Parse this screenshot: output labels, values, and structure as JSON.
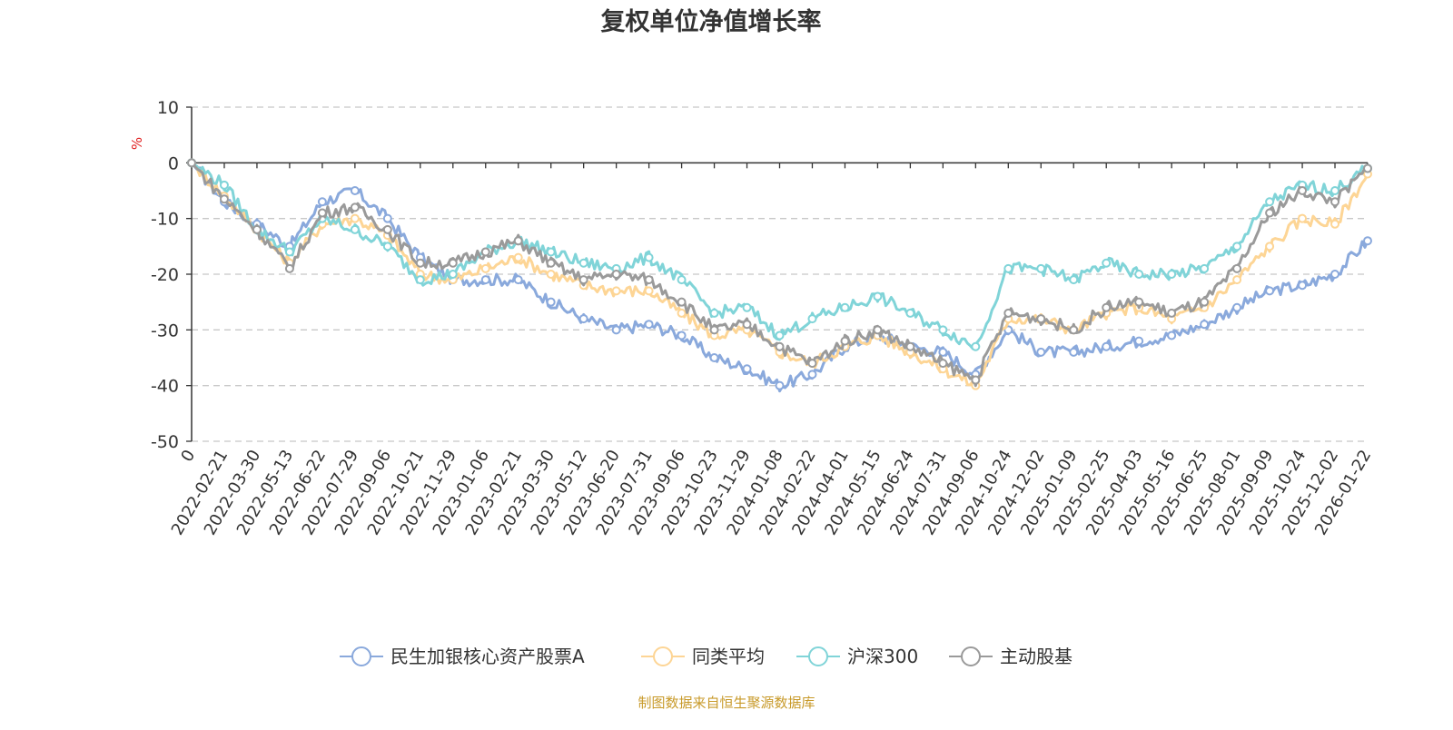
{
  "chart_data": {
    "type": "line",
    "title": "复权单位净值增长率",
    "ylabel": "%",
    "ylim": [
      -50,
      10
    ],
    "yticks": [
      10,
      0,
      -10,
      -20,
      -30,
      -40,
      -50
    ],
    "grid": true,
    "legend_position": "bottom",
    "x": [
      "0",
      "2022-02-21",
      "2022-03-30",
      "2022-05-13",
      "2022-06-22",
      "2022-07-29",
      "2022-09-06",
      "2022-10-21",
      "2022-11-29",
      "2023-01-06",
      "2023-02-21",
      "2023-03-30",
      "2023-05-12",
      "2023-06-20",
      "2023-07-31",
      "2023-09-06",
      "2023-10-23",
      "2023-11-29",
      "2024-01-08",
      "2024-02-22",
      "2024-04-01",
      "2024-05-15",
      "2024-06-24",
      "2024-07-31",
      "2024-09-06",
      "2024-10-24",
      "2024-12-02",
      "2025-01-09",
      "2025-02-25",
      "2025-04-03",
      "2025-05-16",
      "2025-06-25",
      "2025-08-01",
      "2025-09-09",
      "2025-10-24",
      "2025-12-02",
      "2026-01-22"
    ],
    "series": [
      {
        "name": "民生加银核心资产股票A",
        "color": "#8aa9dc",
        "values": [
          0,
          -7,
          -11,
          -15,
          -7,
          -5,
          -10,
          -17,
          -21,
          -21,
          -21,
          -25,
          -28,
          -30,
          -29,
          -31,
          -35,
          -37,
          -40,
          -38,
          -33,
          -31,
          -33,
          -34,
          -38,
          -30,
          -34,
          -34,
          -33,
          -32,
          -31,
          -29,
          -26,
          -23,
          -22,
          -20,
          -14
        ]
      },
      {
        "name": "同类平均",
        "color": "#fdd595",
        "values": [
          0,
          -6,
          -12,
          -18,
          -11,
          -10,
          -13,
          -20,
          -21,
          -19,
          -17,
          -20,
          -22,
          -23,
          -23,
          -27,
          -31,
          -30,
          -34,
          -36,
          -33,
          -31,
          -34,
          -37,
          -40,
          -28,
          -28,
          -30,
          -27,
          -26,
          -28,
          -26,
          -21,
          -15,
          -10,
          -11,
          -2
        ]
      },
      {
        "name": "沪深300",
        "color": "#80d4d8",
        "values": [
          0,
          -4,
          -12,
          -16,
          -10,
          -12,
          -15,
          -21,
          -20,
          -16,
          -14,
          -16,
          -18,
          -19,
          -17,
          -21,
          -27,
          -26,
          -31,
          -28,
          -26,
          -24,
          -27,
          -30,
          -33,
          -19,
          -19,
          -21,
          -18,
          -20,
          -20,
          -19,
          -15,
          -7,
          -4,
          -5,
          -1
        ]
      },
      {
        "name": "主动股基",
        "color": "#9a9a9a",
        "values": [
          0,
          -6.5,
          -12,
          -19,
          -9,
          -8,
          -12,
          -18,
          -18,
          -16,
          -14,
          -18,
          -21,
          -20,
          -21,
          -25,
          -30,
          -29,
          -33,
          -36,
          -32,
          -30,
          -33,
          -36,
          -39,
          -27,
          -28,
          -30,
          -26,
          -25,
          -27,
          -25,
          -19,
          -9,
          -5,
          -7,
          -1
        ]
      }
    ]
  },
  "footer": "制图数据来自恒生聚源数据库"
}
